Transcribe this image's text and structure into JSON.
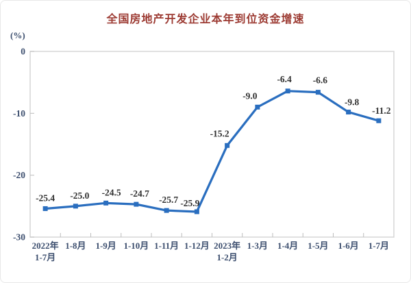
{
  "chart_data": {
    "type": "line",
    "title": "全国房地产开发企业本年到位资金增速",
    "unit_label": "(%)",
    "categories": [
      [
        "2022年",
        "1-7月"
      ],
      [
        "1-8月"
      ],
      [
        "1-9月"
      ],
      [
        "1-10月"
      ],
      [
        "1-11月"
      ],
      [
        "1-12月"
      ],
      [
        "2023年",
        "1-2月"
      ],
      [
        "1-3月"
      ],
      [
        "1-4月"
      ],
      [
        "1-5月"
      ],
      [
        "1-6月"
      ],
      [
        "1-7月"
      ]
    ],
    "values": [
      -25.4,
      -25.0,
      -24.5,
      -24.7,
      -25.7,
      -25.9,
      -15.2,
      -9.0,
      -6.4,
      -6.6,
      -9.8,
      -11.2
    ],
    "y_ticks": [
      0,
      -10,
      -20,
      -30
    ],
    "ylim": [
      -30,
      0
    ],
    "xlabel": "",
    "ylabel": "(%)",
    "grid": false,
    "legend": "none",
    "data_label_decimals": 1,
    "colors": {
      "title": "#9c3a32",
      "line": "#2a6ebf",
      "marker": "#2a6ebf",
      "axis_labels": "#3c4e6e",
      "data_labels": "#303030",
      "plot_border": "#d6d6d6",
      "ticks": "#bcbcbc",
      "background": "#ffffff"
    }
  }
}
